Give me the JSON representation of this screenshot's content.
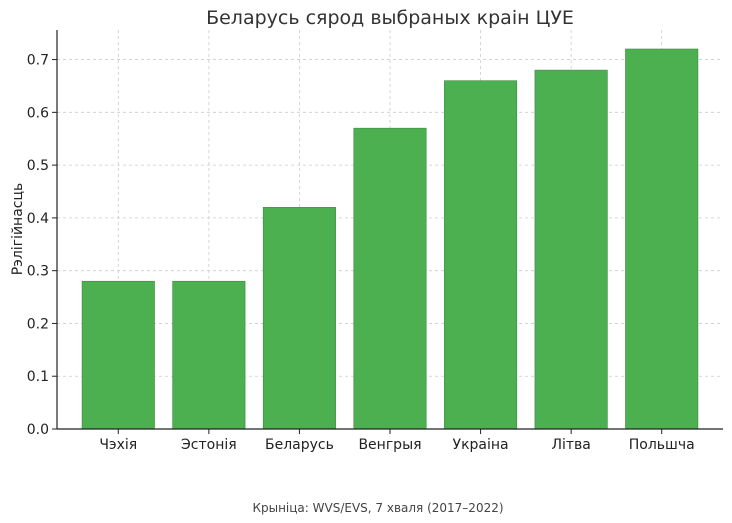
{
  "chart_data": {
    "type": "bar",
    "title": "Беларусь сярод выбраных краін ЦУЕ",
    "xlabel": "",
    "ylabel": "Рэлігійнасць",
    "categories": [
      "Чэхія",
      "Эстонія",
      "Беларусь",
      "Венгрыя",
      "Украіна",
      "Літва",
      "Польшча"
    ],
    "values": [
      0.28,
      0.28,
      0.42,
      0.57,
      0.66,
      0.68,
      0.72
    ],
    "ylim": [
      0,
      0.756
    ],
    "yticks": [
      "0.0",
      "0.1",
      "0.2",
      "0.3",
      "0.4",
      "0.5",
      "0.6",
      "0.7"
    ],
    "grid": true,
    "bar_color": "#4caf50",
    "bar_edge_color": "#3d8b40",
    "source": "Крыніца: WVS/EVS, 7 хваля (2017–2022)"
  }
}
